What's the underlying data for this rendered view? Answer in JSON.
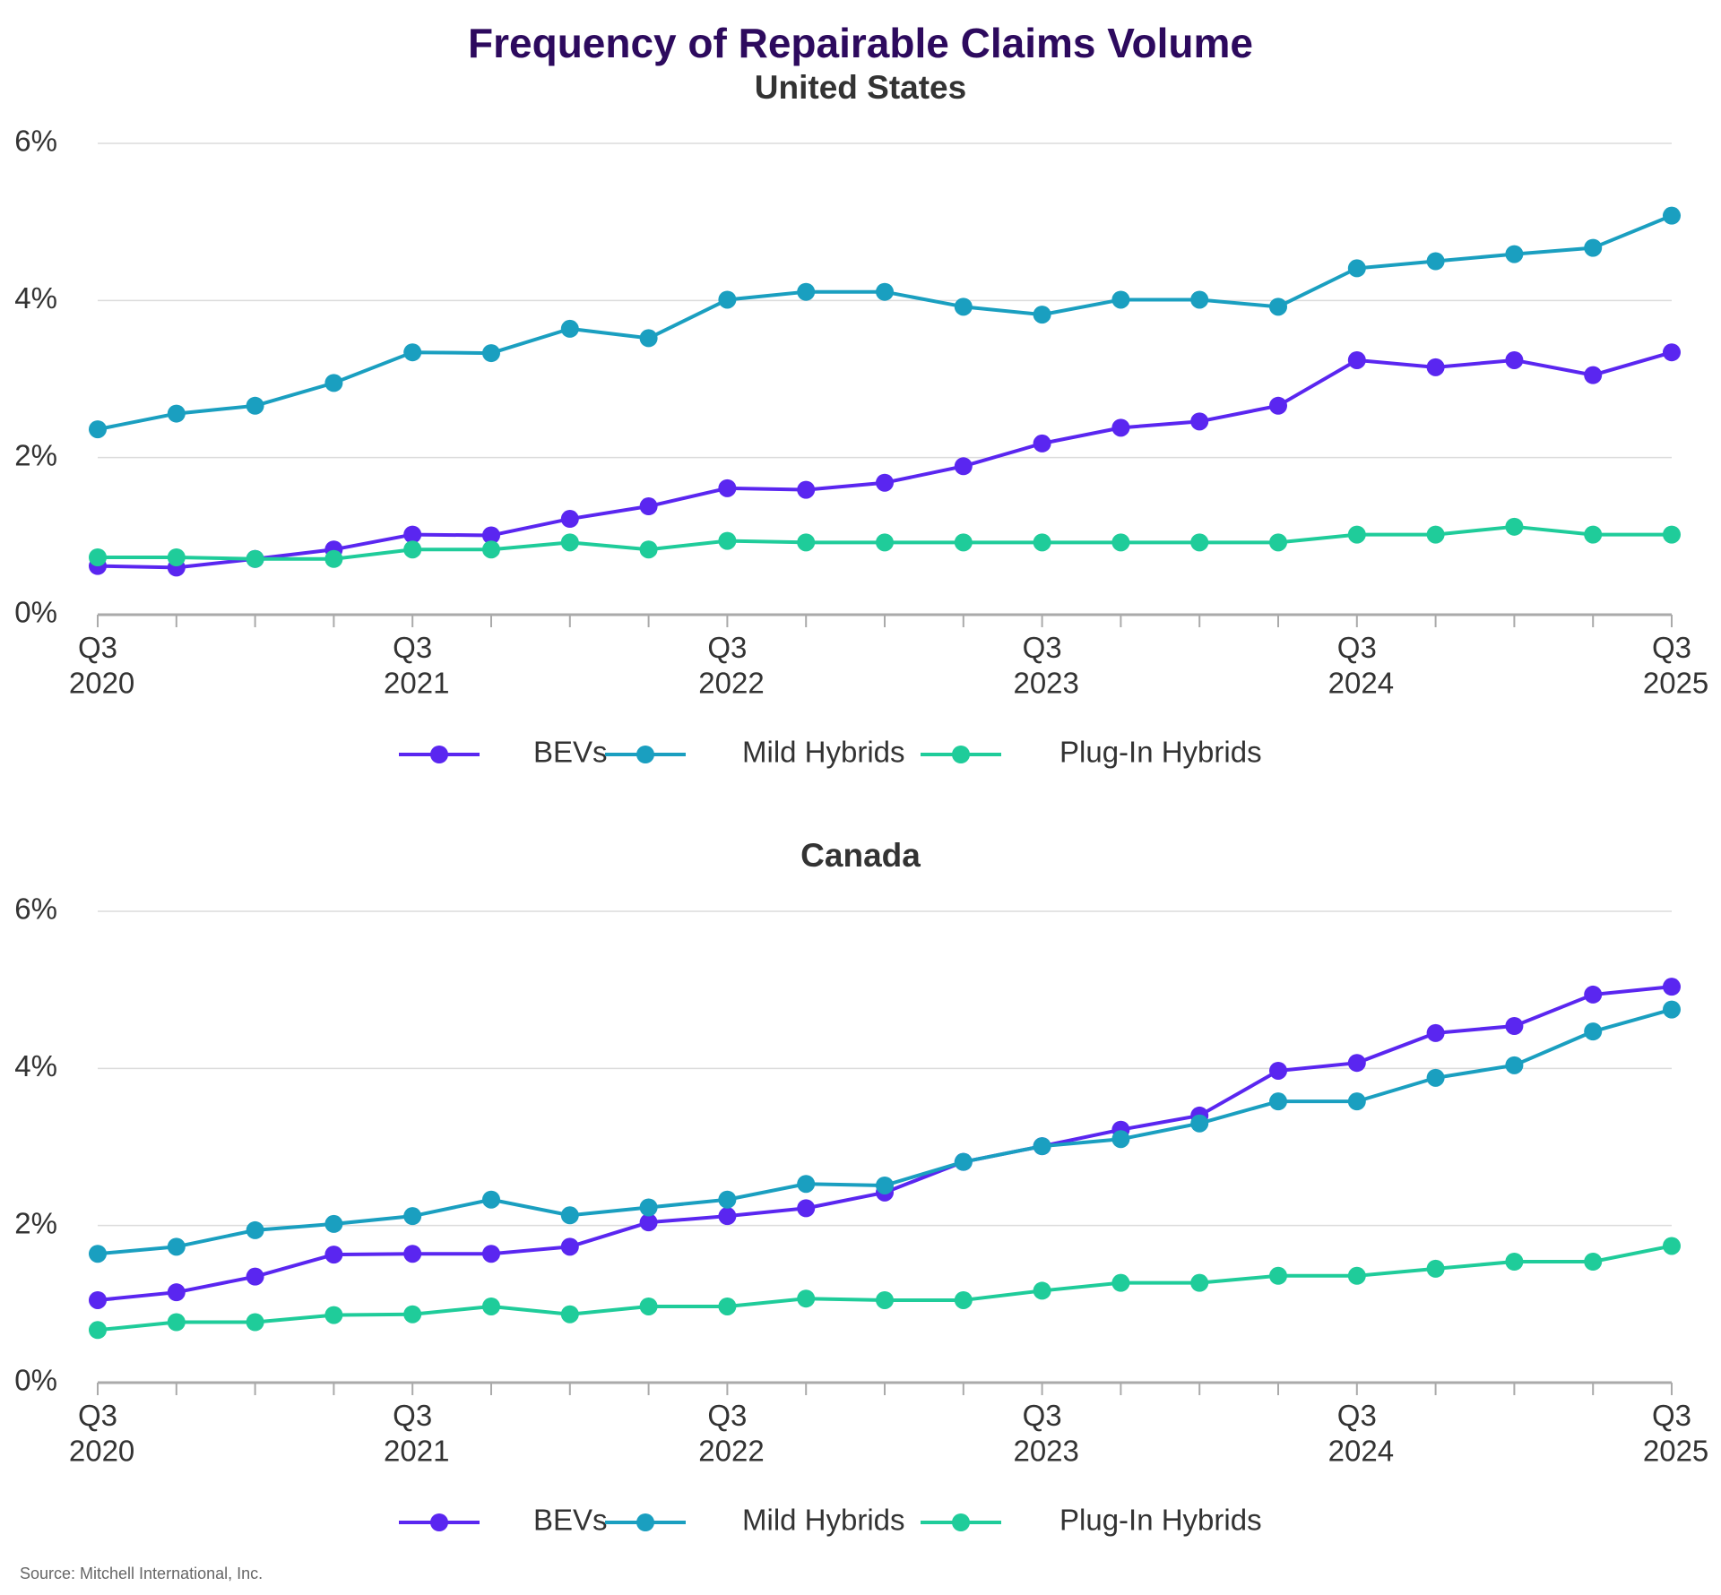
{
  "title": "Frequency of Repairable Claims Volume",
  "source": "Source: Mitchell International, Inc.",
  "chart_data": [
    {
      "type": "line",
      "title": "United States",
      "categories": [
        "Q3 2020",
        null,
        null,
        null,
        "Q3 2021",
        null,
        null,
        null,
        "Q3 2022",
        null,
        null,
        null,
        "Q3 2023",
        null,
        null,
        null,
        "Q3 2024",
        null,
        null,
        null,
        "Q3 2025"
      ],
      "ylim": [
        0,
        6
      ],
      "yticks": [
        {
          "value": 0,
          "label": "0%"
        },
        {
          "value": 2,
          "label": "2%"
        },
        {
          "value": 4,
          "label": "4%"
        },
        {
          "value": 6,
          "label": "6%"
        }
      ],
      "grid": true,
      "legend": "bottom",
      "series": [
        {
          "name": "BEVs",
          "color": "#5a26f0",
          "values": [
            0.62,
            0.6,
            0.71,
            0.83,
            1.02,
            1.01,
            1.22,
            1.38,
            1.61,
            1.59,
            1.68,
            1.89,
            2.18,
            2.38,
            2.46,
            2.66,
            3.24,
            3.15,
            3.24,
            3.05,
            3.34
          ]
        },
        {
          "name": "Mild Hybrids",
          "color": "#1a9fc0",
          "values": [
            2.36,
            2.56,
            2.66,
            2.95,
            3.34,
            3.33,
            3.64,
            3.52,
            4.01,
            4.11,
            4.11,
            3.92,
            3.82,
            4.01,
            4.01,
            3.92,
            4.41,
            4.5,
            4.59,
            4.67,
            5.08
          ]
        },
        {
          "name": "Plug-In Hybrids",
          "color": "#1fcc9a",
          "values": [
            0.73,
            0.73,
            0.71,
            0.71,
            0.83,
            0.83,
            0.92,
            0.83,
            0.94,
            0.92,
            0.92,
            0.92,
            0.92,
            0.92,
            0.92,
            0.92,
            1.02,
            1.02,
            1.12,
            1.02,
            1.02
          ]
        }
      ]
    },
    {
      "type": "line",
      "title": "Canada",
      "categories": [
        "Q3 2020",
        null,
        null,
        null,
        "Q3 2021",
        null,
        null,
        null,
        "Q3 2022",
        null,
        null,
        null,
        "Q3 2023",
        null,
        null,
        null,
        "Q3 2024",
        null,
        null,
        null,
        "Q3 2025"
      ],
      "ylim": [
        0,
        6
      ],
      "yticks": [
        {
          "value": 0,
          "label": "0%"
        },
        {
          "value": 2,
          "label": "2%"
        },
        {
          "value": 4,
          "label": "4%"
        },
        {
          "value": 6,
          "label": "6%"
        }
      ],
      "grid": true,
      "legend": "bottom",
      "series": [
        {
          "name": "BEVs",
          "color": "#5a26f0",
          "values": [
            1.05,
            1.15,
            1.35,
            1.63,
            1.64,
            1.64,
            1.73,
            2.04,
            2.12,
            2.22,
            2.42,
            2.81,
            3.01,
            3.22,
            3.4,
            3.97,
            4.07,
            4.45,
            4.54,
            4.94,
            5.04
          ]
        },
        {
          "name": "Mild Hybrids",
          "color": "#1a9fc0",
          "values": [
            1.64,
            1.73,
            1.94,
            2.02,
            2.12,
            2.33,
            2.13,
            2.23,
            2.33,
            2.53,
            2.51,
            2.81,
            3.01,
            3.1,
            3.3,
            3.58,
            3.58,
            3.88,
            4.04,
            4.47,
            4.75
          ]
        },
        {
          "name": "Plug-In Hybrids",
          "color": "#1fcc9a",
          "values": [
            0.67,
            0.77,
            0.77,
            0.86,
            0.87,
            0.97,
            0.87,
            0.97,
            0.97,
            1.07,
            1.05,
            1.05,
            1.17,
            1.27,
            1.27,
            1.36,
            1.36,
            1.45,
            1.54,
            1.54,
            1.74
          ]
        }
      ]
    }
  ]
}
